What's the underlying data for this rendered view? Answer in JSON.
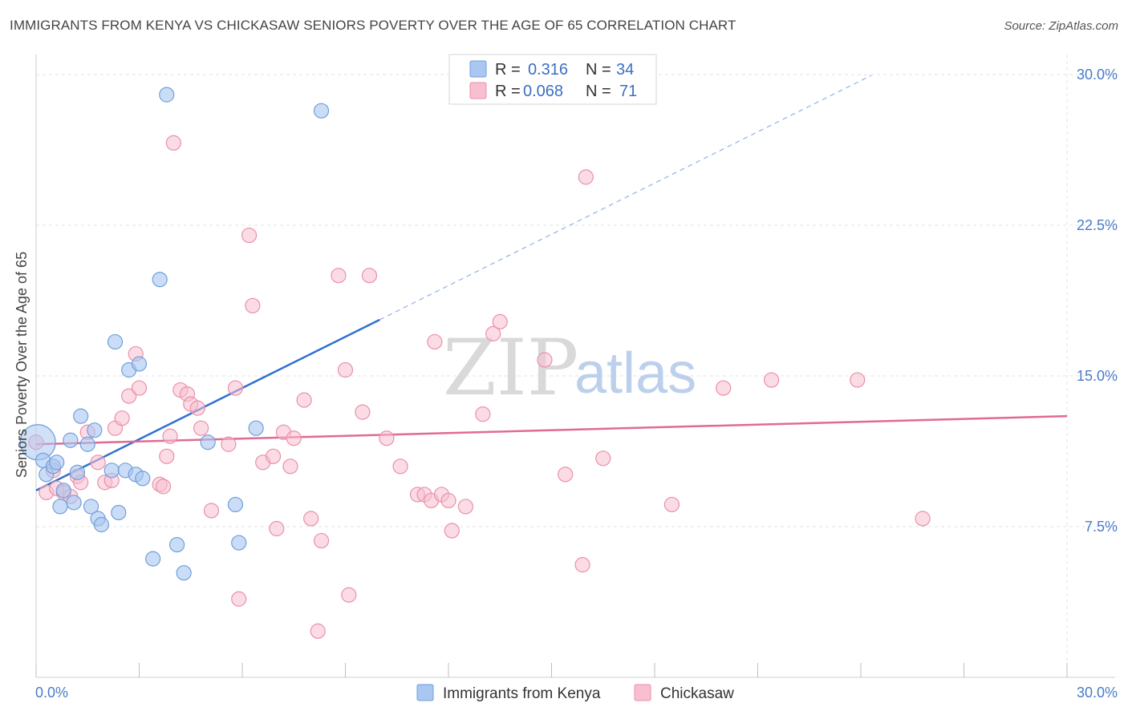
{
  "header": {
    "title": "IMMIGRANTS FROM KENYA VS CHICKASAW SENIORS POVERTY OVER THE AGE OF 65 CORRELATION CHART",
    "source": "Source: ZipAtlas.com"
  },
  "watermark": {
    "zip": "ZIP",
    "atlas": "atlas"
  },
  "colors": {
    "blue_fill": "#a9c7f0",
    "blue_stroke": "#6f9fdc",
    "blue_line": "#2f72cc",
    "pink_fill": "#f7bfd0",
    "pink_stroke": "#ea8fab",
    "pink_line": "#e06a94",
    "grid": "#e3e3e3",
    "tick_text": "#4a7cc9"
  },
  "legend": {
    "r_label": "R =",
    "n_label": "N =",
    "rows": [
      {
        "series": "Immigrants from Kenya",
        "r": "0.316",
        "n": "34"
      },
      {
        "series": "Chickasaw",
        "r": "0.068",
        "n": "71"
      }
    ]
  },
  "chart_data": {
    "type": "scatter",
    "title": "IMMIGRANTS FROM KENYA VS CHICKASAW SENIORS POVERTY OVER THE AGE OF 65 CORRELATION CHART",
    "xlabel": "",
    "ylabel": "Seniors Poverty Over the Age of 65",
    "xlim": [
      0,
      30
    ],
    "ylim": [
      0,
      31
    ],
    "x_tick_labels": [
      {
        "value": 0,
        "label": "0.0%"
      },
      {
        "value": 30,
        "label": "30.0%"
      }
    ],
    "y_tick_labels": [
      {
        "value": 7.5,
        "label": "7.5%"
      },
      {
        "value": 15,
        "label": "15.0%"
      },
      {
        "value": 22.5,
        "label": "22.5%"
      },
      {
        "value": 30,
        "label": "30.0%"
      }
    ],
    "grid": true,
    "legend_position": "top-center",
    "series": [
      {
        "name": "Immigrants from Kenya",
        "color": "blue",
        "trend": {
          "x0": 0,
          "y0": 9.3,
          "x1": 10,
          "y1": 17.8,
          "dash_to_x": 24.3
        },
        "points": [
          [
            0.05,
            11.7
          ],
          [
            0.2,
            10.8
          ],
          [
            0.3,
            10.1
          ],
          [
            0.5,
            10.5
          ],
          [
            0.6,
            10.7
          ],
          [
            0.7,
            8.5
          ],
          [
            0.8,
            9.3
          ],
          [
            1.0,
            11.8
          ],
          [
            1.1,
            8.7
          ],
          [
            1.2,
            10.2
          ],
          [
            1.3,
            13.0
          ],
          [
            1.5,
            11.6
          ],
          [
            1.6,
            8.5
          ],
          [
            1.7,
            12.3
          ],
          [
            1.8,
            7.9
          ],
          [
            1.9,
            7.6
          ],
          [
            2.2,
            10.3
          ],
          [
            2.3,
            16.7
          ],
          [
            2.4,
            8.2
          ],
          [
            2.6,
            10.3
          ],
          [
            2.7,
            15.3
          ],
          [
            2.9,
            10.1
          ],
          [
            3.0,
            15.6
          ],
          [
            3.1,
            9.9
          ],
          [
            3.4,
            5.9
          ],
          [
            3.6,
            19.8
          ],
          [
            3.8,
            29.0
          ],
          [
            4.1,
            6.6
          ],
          [
            4.3,
            5.2
          ],
          [
            5.0,
            11.7
          ],
          [
            5.8,
            8.6
          ],
          [
            5.9,
            6.7
          ],
          [
            6.4,
            12.4
          ],
          [
            8.3,
            28.2
          ]
        ]
      },
      {
        "name": "Chickasaw",
        "color": "pink",
        "trend": {
          "x0": 0,
          "y0": 11.6,
          "x1": 30,
          "y1": 13.0
        },
        "points": [
          [
            0.3,
            9.2
          ],
          [
            0.5,
            10.3
          ],
          [
            0.6,
            9.4
          ],
          [
            0.8,
            9.2
          ],
          [
            1.0,
            9.0
          ],
          [
            1.2,
            10.0
          ],
          [
            1.3,
            9.7
          ],
          [
            1.5,
            12.2
          ],
          [
            1.8,
            10.7
          ],
          [
            2.0,
            9.7
          ],
          [
            2.2,
            9.8
          ],
          [
            2.3,
            12.4
          ],
          [
            2.5,
            12.9
          ],
          [
            2.7,
            14.0
          ],
          [
            2.9,
            16.1
          ],
          [
            3.0,
            14.4
          ],
          [
            3.6,
            9.6
          ],
          [
            3.7,
            9.5
          ],
          [
            3.8,
            11.0
          ],
          [
            3.9,
            12.0
          ],
          [
            4.0,
            26.6
          ],
          [
            4.2,
            14.3
          ],
          [
            4.4,
            14.1
          ],
          [
            4.5,
            13.6
          ],
          [
            4.7,
            13.4
          ],
          [
            4.8,
            12.4
          ],
          [
            5.1,
            8.3
          ],
          [
            5.6,
            11.6
          ],
          [
            5.8,
            14.4
          ],
          [
            5.9,
            3.9
          ],
          [
            6.2,
            22.0
          ],
          [
            6.3,
            18.5
          ],
          [
            6.6,
            10.7
          ],
          [
            6.9,
            11.0
          ],
          [
            7.0,
            7.4
          ],
          [
            7.2,
            12.2
          ],
          [
            7.4,
            10.5
          ],
          [
            7.5,
            11.9
          ],
          [
            7.8,
            13.8
          ],
          [
            8.0,
            7.9
          ],
          [
            8.2,
            2.3
          ],
          [
            8.3,
            6.8
          ],
          [
            8.8,
            20.0
          ],
          [
            9.0,
            15.3
          ],
          [
            9.1,
            4.1
          ],
          [
            9.5,
            13.2
          ],
          [
            9.7,
            20.0
          ],
          [
            10.2,
            11.9
          ],
          [
            10.6,
            10.5
          ],
          [
            11.1,
            9.1
          ],
          [
            11.3,
            9.1
          ],
          [
            11.5,
            8.8
          ],
          [
            11.6,
            16.7
          ],
          [
            11.8,
            9.1
          ],
          [
            12.0,
            8.8
          ],
          [
            12.1,
            7.3
          ],
          [
            12.5,
            8.5
          ],
          [
            13.0,
            13.1
          ],
          [
            13.3,
            17.1
          ],
          [
            13.5,
            17.7
          ],
          [
            14.8,
            15.8
          ],
          [
            15.4,
            10.1
          ],
          [
            15.9,
            5.6
          ],
          [
            16.0,
            24.9
          ],
          [
            16.5,
            10.9
          ],
          [
            18.5,
            8.6
          ],
          [
            20.0,
            14.4
          ],
          [
            21.4,
            14.8
          ],
          [
            23.9,
            14.8
          ],
          [
            25.8,
            7.9
          ],
          [
            0.0,
            11.7
          ]
        ]
      }
    ]
  }
}
